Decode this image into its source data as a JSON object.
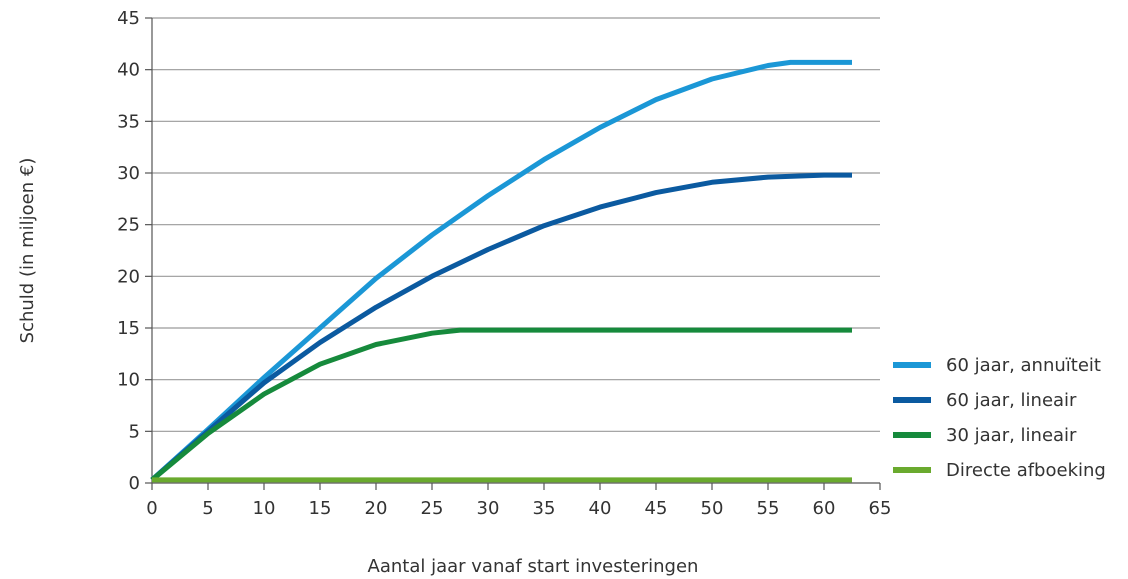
{
  "chart_data": {
    "type": "line",
    "title": "",
    "xlabel": "Aantal jaar vanaf start investeringen",
    "ylabel": "Schuld (in miljoen €)",
    "xlim": [
      0,
      65
    ],
    "ylim": [
      0,
      45
    ],
    "x_ticks": [
      0,
      5,
      10,
      15,
      20,
      25,
      30,
      35,
      40,
      45,
      50,
      55,
      60,
      65
    ],
    "y_ticks": [
      0,
      5,
      10,
      15,
      20,
      25,
      30,
      35,
      40,
      45
    ],
    "grid": "horizontal",
    "legend_position": "right",
    "series": [
      {
        "name": "60 jaar, annuïteit",
        "color": "#1b97d6",
        "x": [
          0,
          5,
          10,
          15,
          20,
          25,
          30,
          35,
          40,
          45,
          50,
          55,
          57,
          60,
          62.5
        ],
        "y": [
          0.3,
          5.2,
          10.2,
          15.0,
          19.8,
          24.0,
          27.8,
          31.3,
          34.4,
          37.1,
          39.1,
          40.4,
          40.7,
          40.7,
          40.7
        ]
      },
      {
        "name": "60 jaar, lineair",
        "color": "#0b5aa0",
        "x": [
          0,
          5,
          10,
          15,
          20,
          25,
          30,
          35,
          40,
          45,
          50,
          55,
          60,
          62.5
        ],
        "y": [
          0.3,
          5.0,
          9.7,
          13.6,
          17.0,
          20.0,
          22.6,
          24.9,
          26.7,
          28.1,
          29.1,
          29.6,
          29.8,
          29.8
        ]
      },
      {
        "name": "30 jaar, lineair",
        "color": "#168a3c",
        "x": [
          0,
          5,
          10,
          15,
          20,
          25,
          27.5,
          30,
          40,
          50,
          60,
          62.5
        ],
        "y": [
          0.3,
          4.8,
          8.6,
          11.5,
          13.4,
          14.5,
          14.8,
          14.8,
          14.8,
          14.8,
          14.8,
          14.8
        ]
      },
      {
        "name": "Directe afboeking",
        "color": "#6aaa2e",
        "x": [
          0,
          62.5
        ],
        "y": [
          0.3,
          0.3
        ]
      }
    ]
  }
}
